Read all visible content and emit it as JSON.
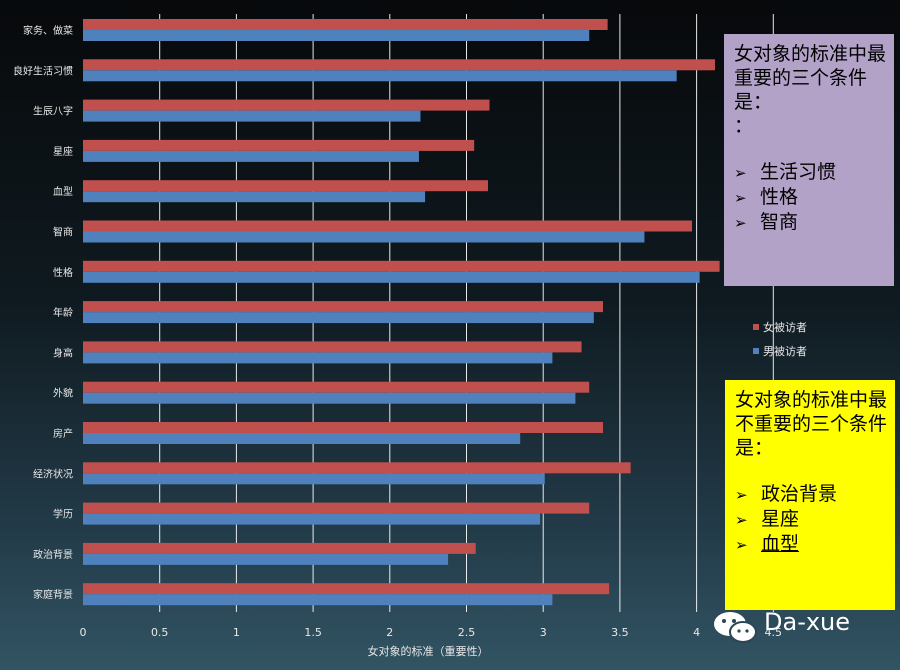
{
  "chart_data": {
    "type": "bar",
    "orientation": "horizontal",
    "categories": [
      "家务、做菜",
      "良好生活习惯",
      "生辰八字",
      "星座",
      "血型",
      "智商",
      "性格",
      "年龄",
      "身高",
      "外貌",
      "房产",
      "经济状况",
      "学历",
      "政治背景",
      "家庭背景"
    ],
    "series": [
      {
        "name": "女被访者",
        "color": "#c0504d",
        "values": [
          3.42,
          4.12,
          2.65,
          2.55,
          2.64,
          3.97,
          4.15,
          3.39,
          3.25,
          3.3,
          3.39,
          3.57,
          3.3,
          2.56,
          3.43
        ]
      },
      {
        "name": "男被访者",
        "color": "#4f81bd",
        "values": [
          3.3,
          3.87,
          2.2,
          2.19,
          2.23,
          3.66,
          4.02,
          3.33,
          3.06,
          3.21,
          2.85,
          3.01,
          2.98,
          2.38,
          3.06
        ]
      }
    ],
    "xlim": [
      0,
      4.5
    ],
    "xticks": [
      "0",
      "0.5",
      "1",
      "1.5",
      "2",
      "2.5",
      "3",
      "3.5",
      "4",
      "4.5"
    ],
    "xlabel": "女对象的标准（重要性）",
    "ylabel": "",
    "grid": "vertical",
    "legend_position": "right"
  },
  "callouts": {
    "important": {
      "title": "女对象的标准中最重要的三个条件是：",
      "title_line2": "：",
      "items": [
        "生活习惯",
        "性格",
        "智商"
      ],
      "color": "#b3a2c8"
    },
    "unimportant": {
      "title": "女对象的标准中最不重要的三个条件是：",
      "items": [
        "政治背景",
        "星座",
        "血型"
      ],
      "color": "#ffff00"
    }
  },
  "watermark": {
    "text": "Da-xue",
    "icon": "wechat-icon"
  }
}
